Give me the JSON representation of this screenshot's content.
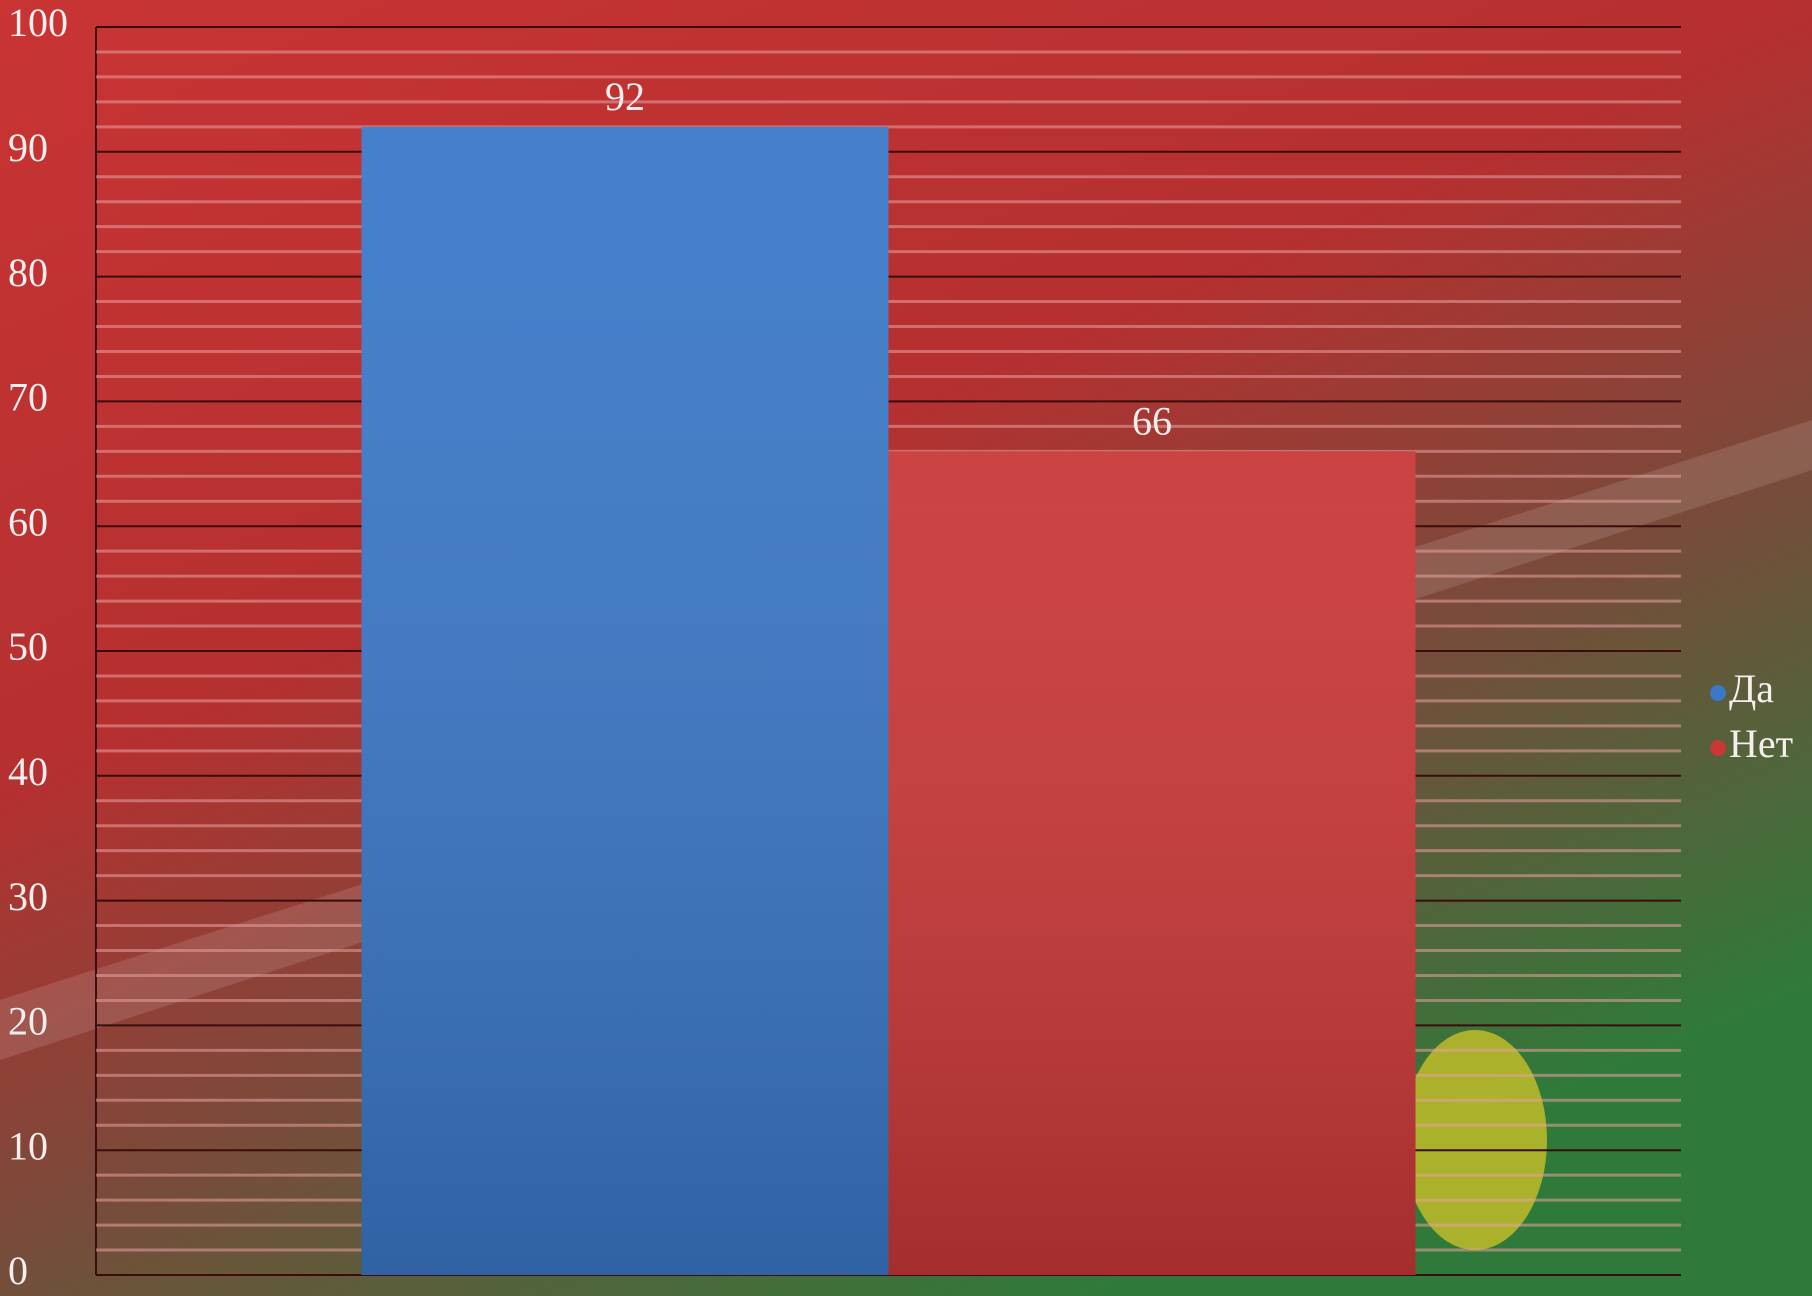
{
  "chart_data": {
    "type": "bar",
    "categories": [
      null
    ],
    "series": [
      {
        "name": "Да",
        "color": "#3a78c8",
        "values": [
          92
        ]
      },
      {
        "name": "Нет",
        "color": "#c93737",
        "values": [
          66
        ]
      }
    ],
    "ylim": [
      0,
      100
    ],
    "yticks": [
      0,
      10,
      20,
      30,
      40,
      50,
      60,
      70,
      80,
      90,
      100
    ],
    "grid": true,
    "legend": "right"
  }
}
